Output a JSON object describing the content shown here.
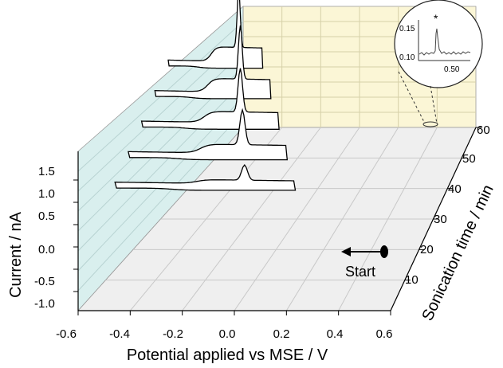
{
  "chart_data": {
    "type": "line",
    "subtype": "3d-waterfall",
    "xlabel": "Potential applied vs MSE / V",
    "ylabel": "Current / nA",
    "zlabel": "Sonication time / min",
    "xlim": [
      -0.6,
      0.6
    ],
    "ylim": [
      -1.1,
      1.7
    ],
    "zlim": [
      0,
      60
    ],
    "x_ticks": [
      "-0.6",
      "-0.4",
      "-0.2",
      "0.0",
      "0.2",
      "0.4",
      "0.6"
    ],
    "y_ticks": [
      "-1.0",
      "-0.5",
      "0.0",
      "0.5",
      "1.0",
      "1.5"
    ],
    "z_ticks": [
      "10",
      "20",
      "30",
      "40",
      "50",
      "60"
    ],
    "annotation": "Start",
    "series": [
      {
        "sonication_min": 20,
        "peak_potential_V": 0.24,
        "peak_current_nA": 0.34
      },
      {
        "sonication_min": 30,
        "peak_potential_V": 0.24,
        "peak_current_nA": 0.78
      },
      {
        "sonication_min": 40,
        "peak_potential_V": 0.24,
        "peak_current_nA": 0.98
      },
      {
        "sonication_min": 50,
        "peak_potential_V": 0.26,
        "peak_current_nA": 1.2
      },
      {
        "sonication_min": 60,
        "peak_potential_V": 0.27,
        "peak_current_nA": 1.3
      }
    ],
    "inset": {
      "x_ticks": [
        "0.50"
      ],
      "y_ticks": [
        "0.15",
        "0.10"
      ],
      "marker": "*"
    }
  },
  "colors": {
    "back_wall": "#fbf6d6",
    "side_wall": "#d9efee",
    "floor": "#eeeeee",
    "trace": "#000000"
  }
}
